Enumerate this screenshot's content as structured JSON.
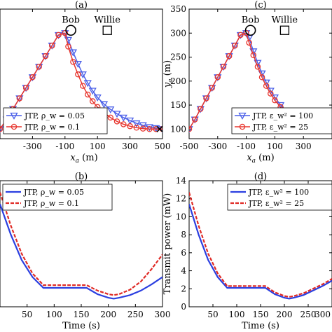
{
  "chart_data": [
    {
      "id": "a",
      "panel_label": "(a)",
      "type": "line",
      "xlabel": "x_a (m)",
      "ylabel": "",
      "xlim": [
        -500,
        500
      ],
      "ylim": [
        80,
        350
      ],
      "xticks": [
        -300,
        -100,
        100,
        300,
        500
      ],
      "xtick_labels": [
        "-300",
        "-100",
        "100",
        "300",
        "500"
      ],
      "yticks": [],
      "annotations": [
        {
          "text": "Bob",
          "x": -90,
          "y": 300,
          "marker": "circle"
        },
        {
          "text": "Willie",
          "x": 100,
          "y": 300,
          "marker": "square"
        }
      ],
      "endpoint": {
        "x": 500,
        "y": 100,
        "marker": "x"
      },
      "legend": "bottom-left",
      "series": [
        {
          "name": "JTP, ρ_w = 0.05",
          "color": "#4a5fe8",
          "marker": "triangle-down",
          "x": [
            -500,
            -460,
            -420,
            -380,
            -340,
            -300,
            -260,
            -220,
            -180,
            -140,
            -100,
            -80,
            -50,
            -20,
            10,
            40,
            70,
            100,
            140,
            180,
            220,
            260,
            300,
            340,
            380,
            420,
            460,
            500
          ],
          "y": [
            100,
            120,
            142,
            164,
            186,
            208,
            230,
            252,
            274,
            296,
            300,
            286,
            260,
            236,
            214,
            196,
            180,
            166,
            152,
            141,
            132,
            124,
            118,
            112,
            108,
            104,
            102,
            100
          ]
        },
        {
          "name": "JTP, ρ_w = 0.1",
          "color": "#e8372f",
          "marker": "circle",
          "x": [
            -500,
            -460,
            -420,
            -380,
            -340,
            -300,
            -260,
            -220,
            -180,
            -140,
            -100,
            -80,
            -50,
            -20,
            10,
            40,
            70,
            100,
            140,
            180,
            220,
            260,
            300,
            340,
            380,
            420,
            460,
            500
          ],
          "y": [
            100,
            120,
            142,
            164,
            186,
            208,
            230,
            252,
            274,
            296,
            300,
            272,
            240,
            214,
            190,
            172,
            158,
            146,
            134,
            124,
            116,
            110,
            106,
            103,
            101,
            100,
            100,
            100
          ]
        }
      ]
    },
    {
      "id": "c",
      "panel_label": "(c)",
      "type": "line",
      "xlabel": "x_a (m)",
      "ylabel": "y_a (m)",
      "xlim": [
        -500,
        500
      ],
      "ylim": [
        80,
        350
      ],
      "xticks": [
        -500,
        -300,
        -100,
        100,
        300
      ],
      "xtick_labels": [
        "-500",
        "-300",
        "-100",
        "100",
        "300"
      ],
      "yticks": [
        100,
        150,
        200,
        250,
        300,
        350
      ],
      "ytick_labels": [
        "100",
        "150",
        "200",
        "250",
        "300",
        "350"
      ],
      "annotations": [
        {
          "text": "Bob",
          "x": -100,
          "y": 300,
          "marker": "circle"
        },
        {
          "text": "Willie",
          "x": 100,
          "y": 300,
          "marker": "square"
        }
      ],
      "legend": "bottom-right",
      "series": [
        {
          "name": "JTP, ε_w² = 100",
          "color": "#4a5fe8",
          "marker": "triangle-down",
          "x": [
            -500,
            -460,
            -420,
            -380,
            -340,
            -300,
            -260,
            -220,
            -180,
            -140,
            -100,
            -80,
            -50,
            -20,
            10,
            40,
            70,
            100,
            140,
            180,
            220,
            260,
            300
          ],
          "y": [
            100,
            120,
            142,
            164,
            186,
            208,
            230,
            252,
            274,
            296,
            300,
            290,
            262,
            238,
            216,
            197,
            180,
            166,
            150,
            138,
            128,
            120,
            114
          ]
        },
        {
          "name": "JTP, ε_w² = 25",
          "color": "#e8372f",
          "marker": "circle",
          "x": [
            -500,
            -460,
            -420,
            -380,
            -340,
            -300,
            -260,
            -220,
            -180,
            -140,
            -100,
            -80,
            -50,
            -20,
            10,
            40,
            70,
            100,
            140,
            180,
            220,
            260,
            300
          ],
          "y": [
            100,
            120,
            142,
            164,
            186,
            208,
            230,
            252,
            274,
            296,
            300,
            280,
            254,
            230,
            208,
            190,
            174,
            160,
            146,
            134,
            124,
            116,
            110
          ]
        }
      ]
    },
    {
      "id": "b",
      "panel_label": "(b)",
      "type": "line",
      "xlabel": "Time (s)",
      "ylabel": "",
      "xlim": [
        0,
        300
      ],
      "ylim": [
        0,
        14
      ],
      "xticks": [
        50,
        100,
        150,
        200,
        250,
        300
      ],
      "xtick_labels": [
        "50",
        "100",
        "150",
        "200",
        "250",
        "300"
      ],
      "yticks": [],
      "legend": "top-left",
      "series": [
        {
          "name": "JTP, ρ_w = 0.05",
          "color": "#2b3fe0",
          "style": "solid",
          "x": [
            0,
            20,
            40,
            60,
            80,
            100,
            160,
            180,
            200,
            210,
            220,
            240,
            260,
            280,
            300
          ],
          "y": [
            11.4,
            8.0,
            5.2,
            3.3,
            2.1,
            2.1,
            2.1,
            1.4,
            1.0,
            0.9,
            1.0,
            1.3,
            1.8,
            2.5,
            3.3
          ]
        },
        {
          "name": "JTP, ρ_w = 0.1",
          "color": "#e02a25",
          "style": "dashed",
          "x": [
            0,
            20,
            40,
            60,
            80,
            100,
            160,
            180,
            200,
            210,
            220,
            240,
            260,
            280,
            300
          ],
          "y": [
            12.7,
            9.0,
            5.9,
            3.7,
            2.4,
            2.4,
            2.4,
            1.8,
            1.4,
            1.3,
            1.4,
            1.9,
            2.8,
            4.2,
            5.8
          ]
        }
      ]
    },
    {
      "id": "d",
      "panel_label": "(d)",
      "type": "line",
      "xlabel": "Time (s)",
      "ylabel": "Transmit power (mW)",
      "xlim": [
        0,
        300
      ],
      "ylim": [
        0,
        14
      ],
      "xticks": [
        50,
        100,
        150,
        200,
        250,
        300
      ],
      "xtick_labels": [
        "50",
        "100",
        "150",
        "200",
        "250",
        "300"
      ],
      "yticks": [
        0,
        2,
        4,
        6,
        8,
        10,
        12,
        14
      ],
      "ytick_labels": [
        "0",
        "2",
        "4",
        "6",
        "8",
        "10",
        "12",
        "14"
      ],
      "legend": "top-right",
      "series": [
        {
          "name": "JTP, ε_w² = 100",
          "color": "#2b3fe0",
          "style": "solid",
          "x": [
            0,
            20,
            40,
            60,
            80,
            100,
            160,
            180,
            200,
            210,
            220,
            240,
            260,
            280,
            300
          ],
          "y": [
            11.4,
            8.0,
            5.2,
            3.3,
            2.1,
            2.1,
            2.1,
            1.4,
            1.0,
            0.9,
            1.0,
            1.3,
            1.8,
            2.3,
            2.9
          ]
        },
        {
          "name": "JTP, ε_w² = 25",
          "color": "#e02a25",
          "style": "dashed",
          "x": [
            0,
            20,
            40,
            60,
            80,
            100,
            160,
            180,
            200,
            210,
            220,
            240,
            260,
            280,
            300
          ],
          "y": [
            12.7,
            9.0,
            5.9,
            3.7,
            2.3,
            2.3,
            2.3,
            1.6,
            1.2,
            1.1,
            1.2,
            1.5,
            2.0,
            2.5,
            3.1
          ]
        }
      ]
    }
  ]
}
